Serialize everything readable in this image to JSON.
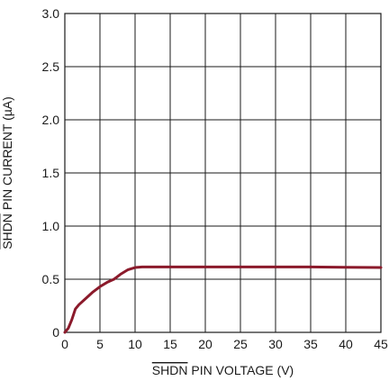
{
  "chart_data": {
    "type": "line",
    "xlabel_overline": "SHDN",
    "xlabel_rest": " PIN VOLTAGE (V)",
    "ylabel_overline": "SHDN",
    "ylabel_rest": " PIN CURRENT (µA)",
    "xlim": [
      0,
      45
    ],
    "ylim": [
      0,
      3.0
    ],
    "x_ticks": [
      0,
      5,
      10,
      15,
      20,
      25,
      30,
      35,
      40,
      45
    ],
    "x_tick_labels": [
      "0",
      "5",
      "10",
      "15",
      "20",
      "25",
      "30",
      "35",
      "40",
      "45"
    ],
    "y_ticks": [
      0,
      0.5,
      1.0,
      1.5,
      2.0,
      2.5,
      3.0
    ],
    "y_tick_labels": [
      "0",
      "0.5",
      "1.0",
      "1.5",
      "2.0",
      "2.5",
      "3.0"
    ],
    "grid": true,
    "series": [
      {
        "color": "#8b1a2b",
        "x": [
          0,
          0.5,
          1,
          1.5,
          2,
          3,
          4,
          5,
          6,
          7,
          8,
          9,
          10,
          11,
          12,
          15,
          20,
          25,
          30,
          35,
          40,
          45
        ],
        "y": [
          0,
          0.04,
          0.12,
          0.22,
          0.26,
          0.32,
          0.38,
          0.43,
          0.47,
          0.5,
          0.55,
          0.59,
          0.61,
          0.615,
          0.615,
          0.615,
          0.615,
          0.615,
          0.615,
          0.615,
          0.612,
          0.61
        ]
      }
    ]
  }
}
